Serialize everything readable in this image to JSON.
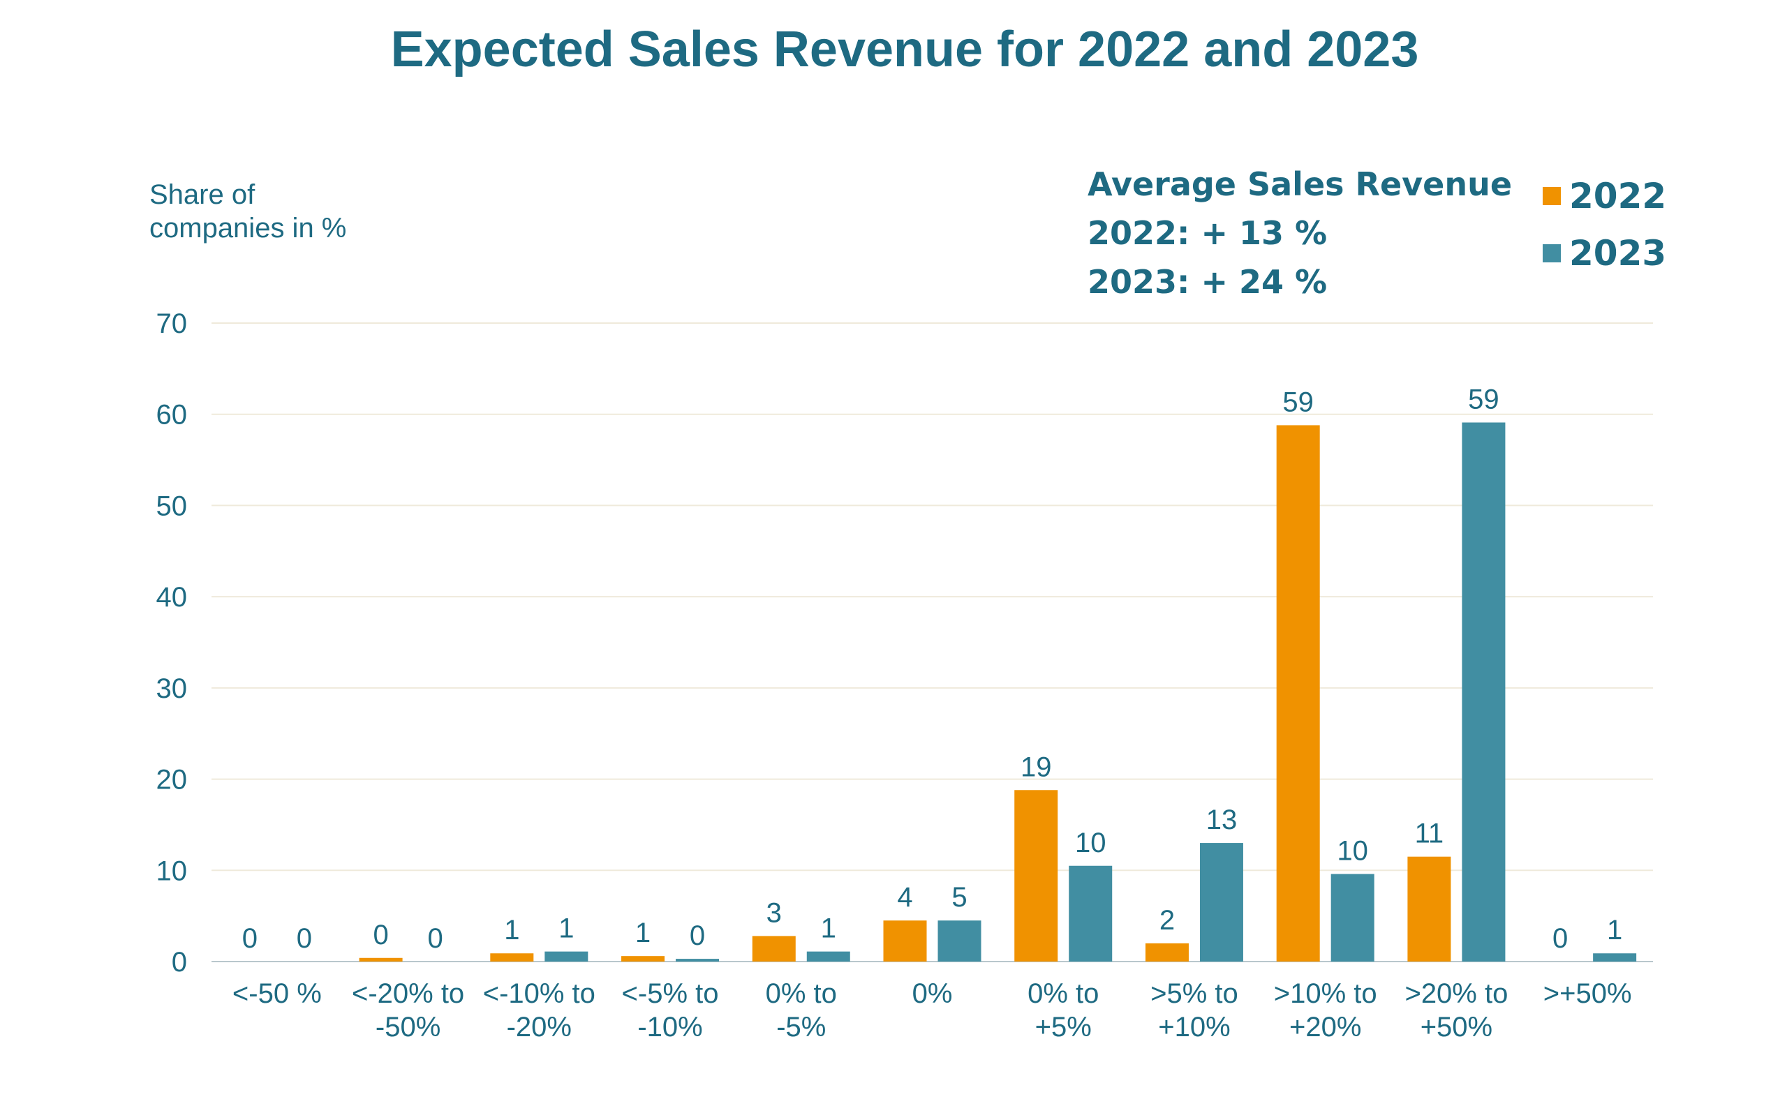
{
  "colors": {
    "text": "#1e6a82",
    "grid": "#efeadb",
    "axis": "#b9c7cc",
    "series_2022": "#f09200",
    "series_2023": "#418ea2"
  },
  "chart_data": {
    "type": "bar",
    "title": "Expected Sales Revenue for 2022 and 2023",
    "ylabel": [
      "Share of",
      "companies in %"
    ],
    "xlabel": "",
    "ylim": [
      0,
      70
    ],
    "yticks": [
      0,
      10,
      20,
      30,
      40,
      50,
      60,
      70
    ],
    "grid": true,
    "legend_position": "top-right",
    "categories": [
      [
        "<-50 %"
      ],
      [
        "<-20% to",
        "-50%"
      ],
      [
        "<-10% to",
        "-20%"
      ],
      [
        "<-5% to",
        "-10%"
      ],
      [
        "0% to",
        "-5%"
      ],
      [
        "0%"
      ],
      [
        "0% to",
        "+5%"
      ],
      [
        ">5% to",
        "+10%"
      ],
      [
        ">10% to",
        "+20%"
      ],
      [
        ">20% to",
        "+50%"
      ],
      [
        ">+50%"
      ]
    ],
    "series": [
      {
        "name": "2022",
        "values": [
          0,
          0.4,
          0.9,
          0.6,
          2.8,
          4.5,
          18.8,
          2.0,
          58.8,
          11.5,
          0
        ],
        "labels": [
          "0",
          "0",
          "1",
          "1",
          "3",
          "4",
          "19",
          "2",
          "59",
          "11",
          "0"
        ]
      },
      {
        "name": "2023",
        "values": [
          0,
          0,
          1.1,
          0.3,
          1.1,
          4.5,
          10.5,
          13.0,
          9.6,
          59.1,
          0.9
        ],
        "labels": [
          "0",
          "0",
          "1",
          "0",
          "1",
          "5",
          "10",
          "13",
          "10",
          "59",
          "1"
        ]
      }
    ],
    "annotation": {
      "heading": "Average Sales Revenue",
      "lines": [
        "2022: + 13 %",
        "2023: + 24 %"
      ]
    }
  }
}
